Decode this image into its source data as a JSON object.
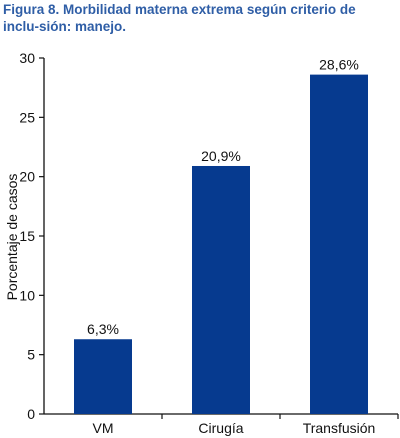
{
  "figure": {
    "title": "Figura 8. Morbilidad materna extrema según criterio de inclu-sión: manejo."
  },
  "chart_data": {
    "type": "bar",
    "title": "",
    "categories": [
      "VM",
      "Cirugía",
      "Transfusión"
    ],
    "values": [
      6.3,
      20.9,
      28.6
    ],
    "value_labels": [
      "6,3%",
      "20,9%",
      "28,6%"
    ],
    "ylabel": "Porcentaje de casos",
    "xlabel": "",
    "ylim": [
      0,
      30
    ],
    "yticks": [
      0,
      5,
      10,
      15,
      20,
      25,
      30
    ],
    "bar_color": "#063a8f",
    "grid": false,
    "legend": "none"
  }
}
